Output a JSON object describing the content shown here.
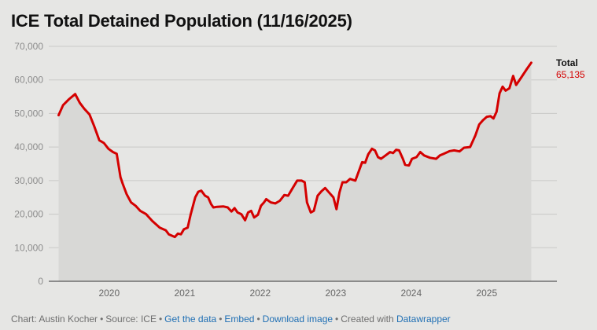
{
  "title": "ICE Total Detained Population (11/16/2025)",
  "chart_data": {
    "type": "area",
    "title": "ICE Total Detained Population (11/16/2025)",
    "ylim": [
      0,
      70000
    ],
    "yticks": [
      {
        "value": 0,
        "label": "0"
      },
      {
        "value": 10000,
        "label": "10,000"
      },
      {
        "value": 20000,
        "label": "20,000"
      },
      {
        "value": 30000,
        "label": "30,000"
      },
      {
        "value": 40000,
        "label": "40,000"
      },
      {
        "value": 50000,
        "label": "50,000"
      },
      {
        "value": 60000,
        "label": "60,000"
      },
      {
        "value": 70000,
        "label": "70,000"
      }
    ],
    "xlim": [
      2019.4,
      2025.9
    ],
    "xticks": [
      {
        "value": 2020,
        "label": "2020"
      },
      {
        "value": 2021,
        "label": "2021"
      },
      {
        "value": 2022,
        "label": "2022"
      },
      {
        "value": 2023,
        "label": "2023"
      },
      {
        "value": 2024,
        "label": "2024"
      },
      {
        "value": 2025,
        "label": "2025"
      }
    ],
    "series": [
      {
        "name": "Total",
        "color": "#d40000",
        "last_label": "65,135",
        "points": [
          [
            2019.38,
            49500
          ],
          [
            2019.44,
            52500
          ],
          [
            2019.52,
            54300
          ],
          [
            2019.6,
            55800
          ],
          [
            2019.66,
            53200
          ],
          [
            2019.72,
            51400
          ],
          [
            2019.79,
            49700
          ],
          [
            2019.85,
            46300
          ],
          [
            2019.92,
            42000
          ],
          [
            2019.98,
            41200
          ],
          [
            2020.04,
            39500
          ],
          [
            2020.1,
            38500
          ],
          [
            2020.15,
            38000
          ],
          [
            2020.2,
            31000
          ],
          [
            2020.23,
            29000
          ],
          [
            2020.28,
            26000
          ],
          [
            2020.34,
            23500
          ],
          [
            2020.4,
            22500
          ],
          [
            2020.46,
            21000
          ],
          [
            2020.54,
            20000
          ],
          [
            2020.62,
            18000
          ],
          [
            2020.72,
            16000
          ],
          [
            2020.8,
            15200
          ],
          [
            2020.84,
            14000
          ],
          [
            2020.92,
            13200
          ],
          [
            2020.96,
            14200
          ],
          [
            2021.0,
            14000
          ],
          [
            2021.04,
            15500
          ],
          [
            2021.09,
            16000
          ],
          [
            2021.13,
            20000
          ],
          [
            2021.19,
            25000
          ],
          [
            2021.23,
            26700
          ],
          [
            2021.27,
            27000
          ],
          [
            2021.32,
            25500
          ],
          [
            2021.36,
            25000
          ],
          [
            2021.4,
            23000
          ],
          [
            2021.43,
            22000
          ],
          [
            2021.48,
            22200
          ],
          [
            2021.56,
            22300
          ],
          [
            2021.62,
            22000
          ],
          [
            2021.67,
            20800
          ],
          [
            2021.71,
            21800
          ],
          [
            2021.75,
            20500
          ],
          [
            2021.8,
            20000
          ],
          [
            2021.85,
            18200
          ],
          [
            2021.89,
            20500
          ],
          [
            2021.93,
            21000
          ],
          [
            2021.97,
            19000
          ],
          [
            2022.02,
            19800
          ],
          [
            2022.06,
            22500
          ],
          [
            2022.1,
            23500
          ],
          [
            2022.13,
            24500
          ],
          [
            2022.19,
            23500
          ],
          [
            2022.25,
            23200
          ],
          [
            2022.31,
            24000
          ],
          [
            2022.37,
            25700
          ],
          [
            2022.42,
            25500
          ],
          [
            2022.48,
            27800
          ],
          [
            2022.54,
            30000
          ],
          [
            2022.6,
            30000
          ],
          [
            2022.64,
            29500
          ],
          [
            2022.67,
            23500
          ],
          [
            2022.72,
            20500
          ],
          [
            2022.76,
            21000
          ],
          [
            2022.81,
            25500
          ],
          [
            2022.86,
            26800
          ],
          [
            2022.91,
            27800
          ],
          [
            2022.96,
            26500
          ],
          [
            2023.02,
            25000
          ],
          [
            2023.06,
            21500
          ],
          [
            2023.1,
            26500
          ],
          [
            2023.14,
            29500
          ],
          [
            2023.19,
            29500
          ],
          [
            2023.24,
            30500
          ],
          [
            2023.31,
            30000
          ],
          [
            2023.4,
            35500
          ],
          [
            2023.44,
            35300
          ],
          [
            2023.48,
            37800
          ],
          [
            2023.53,
            39500
          ],
          [
            2023.57,
            39000
          ],
          [
            2023.61,
            37000
          ],
          [
            2023.65,
            36500
          ],
          [
            2023.71,
            37500
          ],
          [
            2023.77,
            38500
          ],
          [
            2023.81,
            38200
          ],
          [
            2023.85,
            39200
          ],
          [
            2023.89,
            39000
          ],
          [
            2023.94,
            36500
          ],
          [
            2023.97,
            34700
          ],
          [
            2024.02,
            34500
          ],
          [
            2024.06,
            36500
          ],
          [
            2024.12,
            37000
          ],
          [
            2024.17,
            38500
          ],
          [
            2024.22,
            37500
          ],
          [
            2024.3,
            36800
          ],
          [
            2024.38,
            36500
          ],
          [
            2024.43,
            37500
          ],
          [
            2024.48,
            38000
          ],
          [
            2024.56,
            38800
          ],
          [
            2024.62,
            39000
          ],
          [
            2024.69,
            38700
          ],
          [
            2024.75,
            39800
          ],
          [
            2024.83,
            40000
          ],
          [
            2024.9,
            43500
          ],
          [
            2024.95,
            46700
          ],
          [
            2025.0,
            48000
          ],
          [
            2025.05,
            49000
          ],
          [
            2025.1,
            49200
          ],
          [
            2025.14,
            48500
          ],
          [
            2025.18,
            50500
          ],
          [
            2025.22,
            56000
          ],
          [
            2025.26,
            58000
          ],
          [
            2025.3,
            56800
          ],
          [
            2025.35,
            57500
          ],
          [
            2025.4,
            61200
          ],
          [
            2025.44,
            58500
          ],
          [
            2025.5,
            60500
          ],
          [
            2025.58,
            63200
          ],
          [
            2025.64,
            65135
          ]
        ]
      }
    ]
  },
  "footer": {
    "credit": "Chart: Austin Kocher",
    "source": "Source: ICE",
    "get_data": "Get the data",
    "embed": "Embed",
    "download": "Download image",
    "created_with": "Created with",
    "datawrapper": "Datawrapper"
  }
}
